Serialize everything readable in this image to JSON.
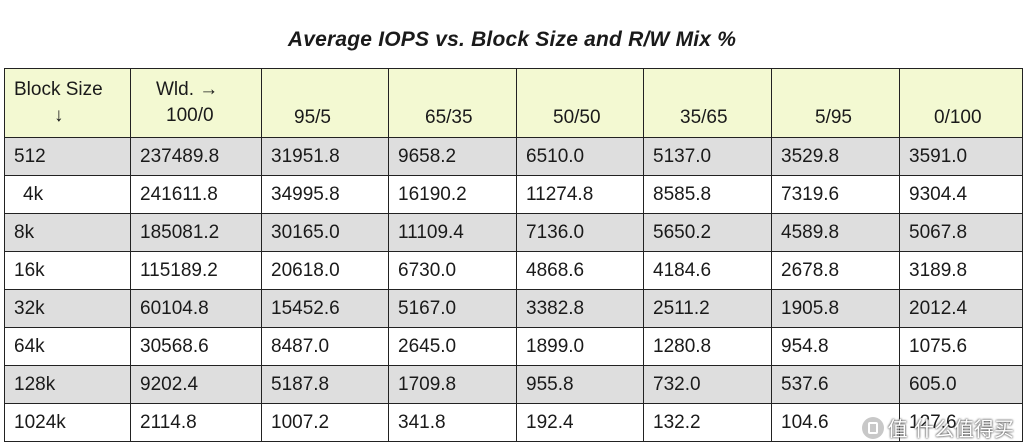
{
  "chart_data": {
    "type": "table",
    "title": "Average IOPS vs. Block Size and R/W Mix %",
    "corner_header": [
      "Block Size",
      "↓"
    ],
    "workload_header_prefix": "Wld. →",
    "columns": [
      "100/0",
      "95/5",
      "65/35",
      "50/50",
      "35/65",
      "5/95",
      "0/100"
    ],
    "rows": [
      {
        "label": "512",
        "values": [
          "237489.8",
          "31951.8",
          "9658.2",
          "6510.0",
          "5137.0",
          "3529.8",
          "3591.0"
        ]
      },
      {
        "label": "4k",
        "values": [
          "241611.8",
          "34995.8",
          "16190.2",
          "11274.8",
          "8585.8",
          "7319.6",
          "9304.4"
        ]
      },
      {
        "label": "8k",
        "values": [
          "185081.2",
          "30165.0",
          "11109.4",
          "7136.0",
          "5650.2",
          "4589.8",
          "5067.8"
        ]
      },
      {
        "label": "16k",
        "values": [
          "115189.2",
          "20618.0",
          "6730.0",
          "4868.6",
          "4184.6",
          "2678.8",
          "3189.8"
        ]
      },
      {
        "label": "32k",
        "values": [
          "60104.8",
          "15452.6",
          "5167.0",
          "3382.8",
          "2511.2",
          "1905.8",
          "2012.4"
        ]
      },
      {
        "label": "64k",
        "values": [
          "30568.6",
          "8487.0",
          "2645.0",
          "1899.0",
          "1280.8",
          "954.8",
          "1075.6"
        ]
      },
      {
        "label": "128k",
        "values": [
          "9202.4",
          "5187.8",
          "1709.8",
          "955.8",
          "732.0",
          "537.6",
          "605.0"
        ]
      },
      {
        "label": "1024k",
        "values": [
          "2114.8",
          "1007.2",
          "341.8",
          "192.4",
          "132.2",
          "104.6",
          "127.6"
        ]
      }
    ],
    "colors": {
      "header_bg": "#f3f9d2",
      "shaded_row_bg": "#dedede",
      "plain_row_bg": "#ffffff",
      "border": "#222222"
    }
  },
  "watermark": {
    "text": "值 什么值得买",
    "icon": "smzdm-logo-icon"
  }
}
